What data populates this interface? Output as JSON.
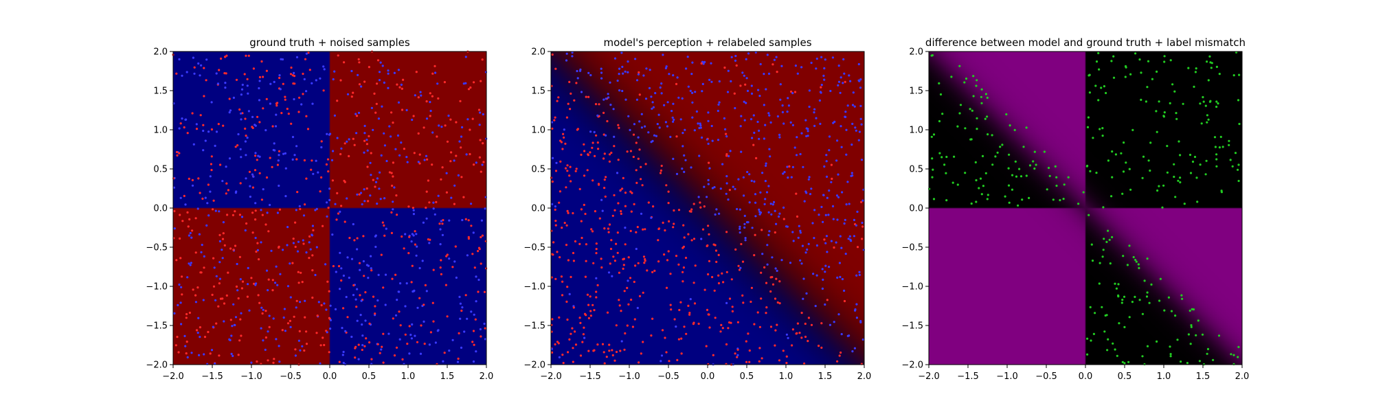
{
  "chart_data": [
    {
      "type": "scatter",
      "title": "ground truth + noised samples",
      "xlim": [
        -2.0,
        2.0
      ],
      "ylim": [
        -2.0,
        2.0
      ],
      "xticks": [
        "−2.0",
        "−1.5",
        "−1.0",
        "−0.5",
        "0.0",
        "0.5",
        "1.0",
        "1.5",
        "2.0"
      ],
      "yticks": [
        "−2.0",
        "−1.5",
        "−1.0",
        "−0.5",
        "0.0",
        "0.5",
        "1.0",
        "1.5",
        "2.0"
      ],
      "background": "quadrant XOR field: red where x·y>0, blue where x·y<0",
      "colors": {
        "red": "#800000",
        "blue": "#000080",
        "dot_red": "#ff2a2a",
        "dot_blue": "#3a3aff"
      },
      "samples": "~1000 points uniform in [-2,2]², labels match background with ~50% flipped"
    },
    {
      "type": "scatter",
      "title": "model's perception + relabeled samples",
      "xlim": [
        -2.0,
        2.0
      ],
      "ylim": [
        -2.0,
        2.0
      ],
      "xticks": [
        "−2.0",
        "−1.5",
        "−1.0",
        "−0.5",
        "0.0",
        "0.5",
        "1.0",
        "1.5",
        "2.0"
      ],
      "yticks": [
        "−2.0",
        "−1.5",
        "−1.0",
        "−0.5",
        "0.0",
        "0.5",
        "1.0",
        "1.5",
        "2.0"
      ],
      "background": "model decision field: red above diagonal x+y>0, blue below",
      "colors": {
        "red": "#800000",
        "blue": "#000080",
        "dot_red": "#ff2a2a",
        "dot_blue": "#3a3aff"
      },
      "samples": "~1000 points; red where x+y<0, blue where x+y>0 (relabeled)"
    },
    {
      "type": "scatter",
      "title": "difference between model and ground truth + label mismatch",
      "xlim": [
        -2.0,
        2.0
      ],
      "ylim": [
        -2.0,
        2.0
      ],
      "xticks": [
        "−2.0",
        "−1.5",
        "−1.0",
        "−0.5",
        "0.0",
        "0.5",
        "1.0",
        "1.5",
        "2.0"
      ],
      "yticks": [
        "−2.0",
        "−1.5",
        "−1.0",
        "−0.5",
        "0.0",
        "0.5",
        "1.0",
        "1.5",
        "2.0"
      ],
      "background": "magenta where model disagrees with ground truth, black where it agrees",
      "colors": {
        "mismatch": "#800080",
        "match": "#000000",
        "dot": "#22cc22"
      },
      "samples": "green points marking label mismatches (upper-left of anti-diagonal and lower-right regions)"
    }
  ]
}
